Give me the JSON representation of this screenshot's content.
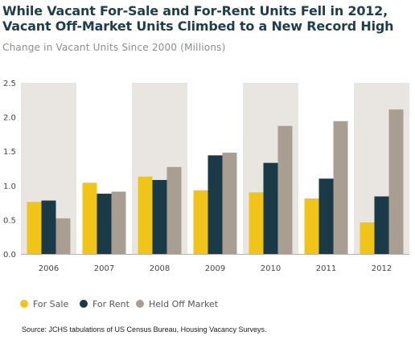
{
  "title_line1": "While Vacant For-Sale and For-Rent Units Fell in 2012,",
  "title_line2": "Vacant Off-Market Units Climbed to a New Record High",
  "subtitle": "Change in Vacant Units Since 2000 (Millions)",
  "source": "Source: JCHS tabulations of US Census Bureau, Housing Vacancy Surveys.",
  "colors": {
    "for_sale": "#f0c419",
    "for_rent": "#1b3a48",
    "held_off_market": "#a89f92",
    "band": "#e9e6e2"
  },
  "chart_data": {
    "type": "bar",
    "categories": [
      "2006",
      "2007",
      "2008",
      "2009",
      "2010",
      "2011",
      "2012"
    ],
    "series": [
      {
        "name": "For Sale",
        "values": [
          0.76,
          1.04,
          1.13,
          0.93,
          0.9,
          0.81,
          0.46
        ]
      },
      {
        "name": "For Rent",
        "values": [
          0.78,
          0.88,
          1.08,
          1.44,
          1.33,
          1.1,
          0.84
        ]
      },
      {
        "name": "Held Off Market",
        "values": [
          0.52,
          0.91,
          1.27,
          1.48,
          1.87,
          1.94,
          2.11
        ]
      }
    ],
    "yticks": [
      "0.0",
      "0.5",
      "1.0",
      "1.5",
      "2.0",
      "2.5"
    ],
    "ylim": [
      0,
      2.5
    ],
    "legend": "bottom-left"
  }
}
